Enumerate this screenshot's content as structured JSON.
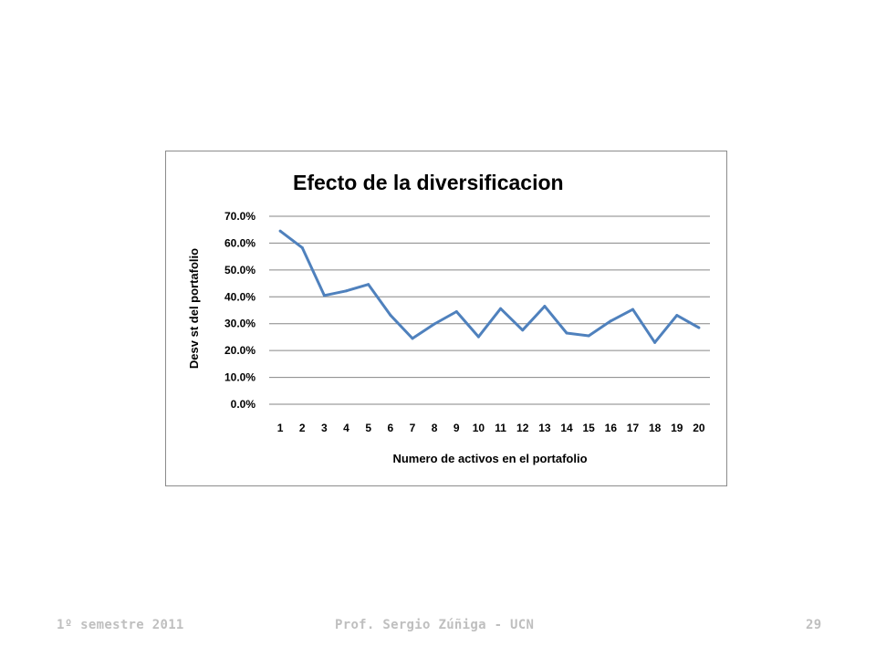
{
  "footer": {
    "semester": "1º semestre 2011",
    "author": "Prof. Sergio Zúñiga - UCN",
    "page_number": "29"
  },
  "colors": {
    "line": "#4f81bd",
    "grid": "#868686",
    "footer_text": "#bfbfbf"
  },
  "chart_data": {
    "type": "line",
    "title": "Efecto de la diversificacion",
    "xlabel": "Numero de activos en el portafolio",
    "ylabel": "Desv st del portafolio",
    "categories": [
      "1",
      "2",
      "3",
      "4",
      "5",
      "6",
      "7",
      "8",
      "9",
      "10",
      "11",
      "12",
      "13",
      "14",
      "15",
      "16",
      "17",
      "18",
      "19",
      "20"
    ],
    "series": [
      {
        "values": [
          64.5,
          58.3,
          40.5,
          42.2,
          44.6,
          33.2,
          24.5,
          29.9,
          34.5,
          25.1,
          35.6,
          27.6,
          36.5,
          26.5,
          25.5,
          31.0,
          35.3,
          23.0,
          33.1,
          28.5
        ]
      }
    ],
    "ylim": [
      0,
      70
    ],
    "yticks": [
      "0.0%",
      "10.0%",
      "20.0%",
      "30.0%",
      "40.0%",
      "50.0%",
      "60.0%",
      "70.0%"
    ],
    "grid": true,
    "legend": "none"
  }
}
